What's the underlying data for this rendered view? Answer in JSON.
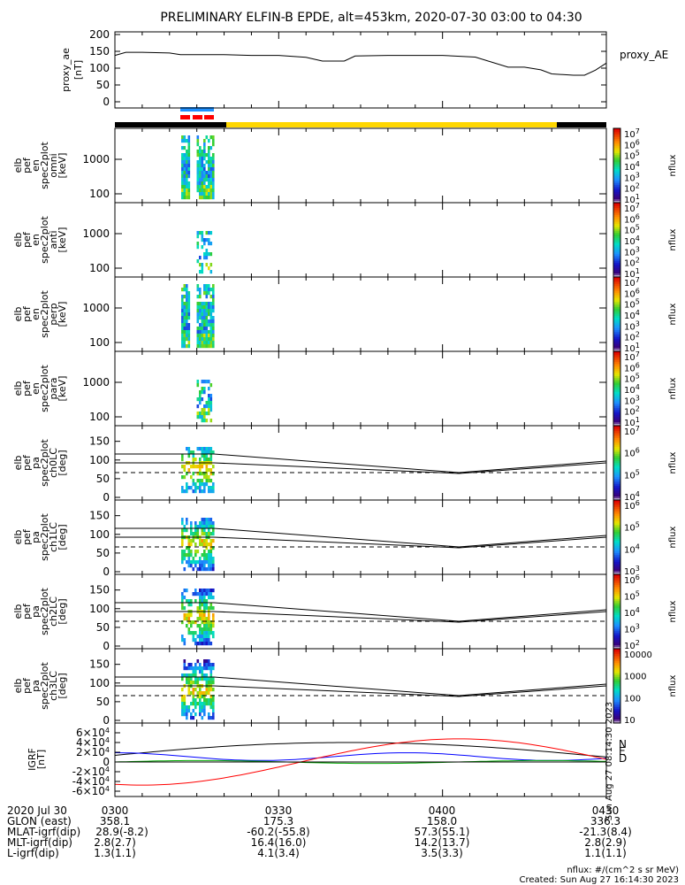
{
  "title": "PRELIMINARY ELFIN-B EPDE, alt=453km, 2020-07-30 03:00 to 04:30",
  "chart_data": [
    {
      "type": "line",
      "name": "proxy_ae",
      "ylabel": [
        "proxy_ae",
        "[nT]"
      ],
      "legend": "proxy_AE",
      "ylim": [
        0,
        210
      ],
      "yticks": [
        "200",
        "150",
        "100",
        "50",
        "0"
      ],
      "x_minutes": [
        0,
        2,
        5,
        10,
        12,
        20,
        25,
        30,
        35,
        38,
        42,
        44,
        50,
        60,
        66,
        72,
        75,
        78,
        80,
        84,
        86,
        88,
        90
      ],
      "values": [
        138,
        147,
        147,
        145,
        140,
        140,
        138,
        138,
        132,
        121,
        121,
        136,
        138,
        138,
        133,
        103,
        103,
        95,
        83,
        79,
        79,
        94,
        115
      ]
    },
    {
      "type": "heatmap",
      "name": "omni",
      "ylabel": [
        "elb",
        "pef",
        "en",
        "spec2plot",
        "omni",
        "[keV]"
      ],
      "yticks": [
        "1000",
        "100"
      ],
      "colorbar": {
        "label": "nflux",
        "ticks": [
          "10^7",
          "10^6",
          "10^5",
          "10^4",
          "10^3",
          "10^2",
          "10^1"
        ]
      }
    },
    {
      "type": "heatmap",
      "name": "anti",
      "ylabel": [
        "elb",
        "pef",
        "en",
        "spec2plot",
        "anti",
        "[keV]"
      ],
      "yticks": [
        "1000",
        "100"
      ],
      "colorbar": {
        "label": "nflux",
        "ticks": [
          "10^7",
          "10^6",
          "10^5",
          "10^4",
          "10^3",
          "10^2",
          "10^1"
        ]
      }
    },
    {
      "type": "heatmap",
      "name": "perp",
      "ylabel": [
        "elb",
        "pef",
        "en",
        "spec2plot",
        "perp",
        "[keV]"
      ],
      "yticks": [
        "1000",
        "100"
      ],
      "colorbar": {
        "label": "nflux",
        "ticks": [
          "10^7",
          "10^6",
          "10^5",
          "10^4",
          "10^3",
          "10^2",
          "10^1"
        ]
      }
    },
    {
      "type": "heatmap",
      "name": "para",
      "ylabel": [
        "elb",
        "pef",
        "en",
        "spec2plot",
        "para",
        "[keV]"
      ],
      "yticks": [
        "1000",
        "100"
      ],
      "colorbar": {
        "label": "nflux",
        "ticks": [
          "10^7",
          "10^6",
          "10^5",
          "10^4",
          "10^3",
          "10^2",
          "10^1"
        ]
      }
    },
    {
      "type": "heatmap",
      "name": "ch0LC",
      "ylabel": [
        "elb",
        "pef",
        "pa",
        "spec2plot",
        "ch0LC",
        "[deg]"
      ],
      "yticks": [
        "150",
        "100",
        "50",
        "0"
      ],
      "colorbar": {
        "label": "nflux",
        "ticks": [
          "10^7",
          "10^6",
          "10^5",
          "10^4"
        ]
      }
    },
    {
      "type": "heatmap",
      "name": "ch1LC",
      "ylabel": [
        "elb",
        "pef",
        "pa",
        "spec2plot",
        "ch1LC",
        "[deg]"
      ],
      "yticks": [
        "150",
        "100",
        "50",
        "0"
      ],
      "colorbar": {
        "label": "nflux",
        "ticks": [
          "10^6",
          "10^5",
          "10^4",
          "10^3"
        ]
      }
    },
    {
      "type": "heatmap",
      "name": "ch2LC",
      "ylabel": [
        "elb",
        "pef",
        "pa",
        "spec2plot",
        "ch2LC",
        "[deg]"
      ],
      "yticks": [
        "150",
        "100",
        "50",
        "0"
      ],
      "colorbar": {
        "label": "nflux",
        "ticks": [
          "10^6",
          "10^5",
          "10^4",
          "10^3",
          "10^2"
        ]
      }
    },
    {
      "type": "heatmap",
      "name": "ch3LC",
      "ylabel": [
        "elb",
        "pef",
        "pa",
        "spec2plot",
        "ch3LC",
        "[deg]"
      ],
      "yticks": [
        "150",
        "100",
        "50",
        "0"
      ],
      "colorbar": {
        "label": "nflux",
        "ticks": [
          "10000",
          "1000",
          "100",
          "10"
        ]
      }
    },
    {
      "type": "line",
      "name": "IGRF",
      "ylabel": [
        "IGRF",
        "[nT]"
      ],
      "yticks": [
        "6×10^4",
        "4×10^4",
        "2×10^4",
        "0",
        "-2×10^4",
        "-4×10^4",
        "-6×10^4"
      ],
      "legend": [
        "N",
        "E",
        "D"
      ],
      "side_text": "Sun Aug 27 08:14:30 2023",
      "series": [
        {
          "name": "N",
          "color": "#0000ff"
        },
        {
          "name": "E",
          "color": "#00aa00"
        },
        {
          "name": "D",
          "color": "#ff0000"
        },
        {
          "color": "#000000"
        }
      ]
    }
  ],
  "footer": {
    "rows": [
      {
        "label": "2020 Jul 30",
        "values": [
          "0300",
          "0330",
          "0400",
          "0430"
        ]
      },
      {
        "label": "GLON (east)",
        "values": [
          "358.1",
          "175.3",
          "158.0",
          "336.3"
        ]
      },
      {
        "label": "MLAT-igrf(dip)",
        "values": [
          "28.9(-8.2)",
          "-60.2(-55.8)",
          "57.3(55.1)",
          "-21.3(8.4)"
        ]
      },
      {
        "label": "MLT-igrf(dip)",
        "values": [
          "2.8(2.7)",
          "16.4(16.0)",
          "14.2(13.7)",
          "2.8(2.9)"
        ]
      },
      {
        "label": "L-igrf(dip)",
        "values": [
          "1.3(1.1)",
          "4.1(3.4)",
          "3.5(3.3)",
          "1.1(1.1)"
        ]
      }
    ],
    "units": "nflux: #/(cm^2 s sr MeV)",
    "created": "Created: Sun Aug 27 16:14:30 2023"
  }
}
